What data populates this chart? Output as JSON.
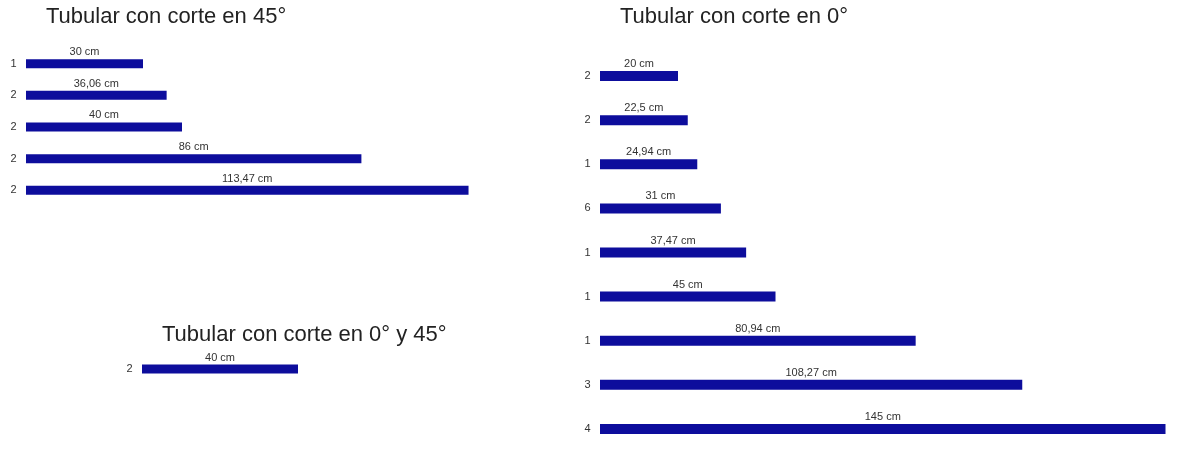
{
  "chart_data": [
    {
      "type": "bar",
      "orientation": "horizontal",
      "title": "Tubular con corte en 45°",
      "categories": [
        "1",
        "2",
        "2",
        "2",
        "2"
      ],
      "values": [
        30,
        36.06,
        40,
        86,
        113.47
      ],
      "value_labels": [
        "30 cm",
        "36,06 cm",
        "40 cm",
        "86 cm",
        "113,47 cm"
      ],
      "color": "#0d0d9c",
      "tick_labels": "y"
    },
    {
      "type": "bar",
      "orientation": "horizontal",
      "title": "Tubular con corte en 0°",
      "categories": [
        "2",
        "2",
        "1",
        "6",
        "1",
        "1",
        "1",
        "3",
        "4"
      ],
      "values": [
        20,
        22.5,
        24.94,
        31,
        37.47,
        45,
        80.94,
        108.27,
        145
      ],
      "value_labels": [
        "20 cm",
        "22,5 cm",
        "24,94 cm",
        "31 cm",
        "37,47 cm",
        "45 cm",
        "80,94 cm",
        "108,27 cm",
        "145 cm"
      ],
      "color": "#0d0d9c",
      "tick_labels": "y"
    },
    {
      "type": "bar",
      "orientation": "horizontal",
      "title": "Tubular con corte en 0° y 45°",
      "categories": [
        "2"
      ],
      "values": [
        40
      ],
      "value_labels": [
        "40 cm"
      ],
      "color": "#0d0d9c",
      "tick_labels": "y"
    }
  ]
}
